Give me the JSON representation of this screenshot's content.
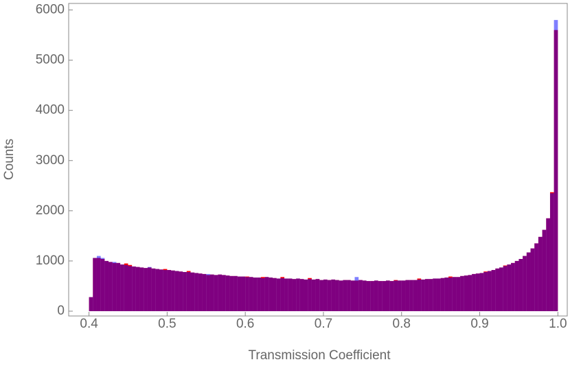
{
  "chart_data": {
    "type": "histogram",
    "x_label": "Transmission Coefficient",
    "y_label": "Counts",
    "bins": [
      0.4,
      0.405,
      0.41,
      0.415,
      0.42,
      0.425,
      0.43,
      0.435,
      0.44,
      0.445,
      0.45,
      0.455,
      0.46,
      0.465,
      0.47,
      0.475,
      0.48,
      0.485,
      0.49,
      0.495,
      0.5,
      0.505,
      0.51,
      0.515,
      0.52,
      0.525,
      0.53,
      0.535,
      0.54,
      0.545,
      0.55,
      0.555,
      0.56,
      0.565,
      0.57,
      0.575,
      0.58,
      0.585,
      0.59,
      0.595,
      0.6,
      0.605,
      0.61,
      0.615,
      0.62,
      0.625,
      0.63,
      0.635,
      0.64,
      0.645,
      0.65,
      0.655,
      0.66,
      0.665,
      0.67,
      0.675,
      0.68,
      0.685,
      0.69,
      0.695,
      0.7,
      0.705,
      0.71,
      0.715,
      0.72,
      0.725,
      0.73,
      0.735,
      0.74,
      0.745,
      0.75,
      0.755,
      0.76,
      0.765,
      0.77,
      0.775,
      0.78,
      0.785,
      0.79,
      0.795,
      0.8,
      0.805,
      0.81,
      0.815,
      0.82,
      0.825,
      0.83,
      0.835,
      0.84,
      0.845,
      0.85,
      0.855,
      0.86,
      0.865,
      0.87,
      0.875,
      0.88,
      0.885,
      0.89,
      0.895,
      0.9,
      0.905,
      0.91,
      0.915,
      0.92,
      0.925,
      0.93,
      0.935,
      0.94,
      0.945,
      0.95,
      0.955,
      0.96,
      0.965,
      0.97,
      0.975,
      0.98,
      0.985,
      0.99,
      0.995,
      1.0
    ],
    "series": [
      {
        "color": "#ff0000",
        "values": [
          280,
          1060,
          1060,
          1040,
          1000,
          980,
          960,
          960,
          930,
          950,
          920,
          890,
          880,
          870,
          860,
          870,
          850,
          840,
          830,
          840,
          820,
          810,
          800,
          790,
          780,
          800,
          770,
          760,
          750,
          740,
          720,
          730,
          720,
          730,
          720,
          710,
          700,
          700,
          690,
          690,
          690,
          680,
          670,
          670,
          680,
          680,
          670,
          660,
          650,
          680,
          650,
          650,
          640,
          650,
          640,
          630,
          660,
          630,
          640,
          620,
          630,
          620,
          630,
          620,
          610,
          620,
          620,
          610,
          610,
          620,
          610,
          600,
          600,
          610,
          600,
          600,
          610,
          600,
          620,
          610,
          610,
          620,
          620,
          620,
          650,
          630,
          640,
          640,
          650,
          650,
          660,
          670,
          690,
          680,
          680,
          700,
          710,
          720,
          740,
          750,
          760,
          790,
          800,
          820,
          850,
          870,
          910,
          930,
          960,
          1000,
          1040,
          1100,
          1170,
          1250,
          1350,
          1480,
          1620,
          1850,
          2370,
          5600
        ]
      },
      {
        "color": "#0000ff",
        "values": [
          280,
          1060,
          1100,
          1060,
          1000,
          980,
          980,
          960,
          930,
          920,
          900,
          890,
          880,
          870,
          860,
          880,
          850,
          840,
          830,
          820,
          820,
          810,
          800,
          790,
          780,
          780,
          770,
          760,
          750,
          740,
          740,
          730,
          720,
          730,
          720,
          710,
          700,
          700,
          690,
          690,
          680,
          680,
          670,
          670,
          660,
          680,
          670,
          660,
          650,
          660,
          650,
          650,
          640,
          650,
          640,
          630,
          640,
          630,
          640,
          620,
          630,
          620,
          630,
          620,
          610,
          620,
          620,
          610,
          680,
          620,
          610,
          600,
          600,
          610,
          600,
          600,
          610,
          600,
          610,
          610,
          610,
          620,
          620,
          620,
          630,
          630,
          640,
          640,
          650,
          650,
          660,
          670,
          670,
          680,
          680,
          700,
          710,
          720,
          740,
          750,
          760,
          780,
          800,
          820,
          850,
          870,
          900,
          930,
          960,
          1000,
          1040,
          1100,
          1170,
          1250,
          1350,
          1480,
          1620,
          1850,
          2350,
          5800
        ]
      }
    ],
    "xlim": [
      0.374,
      1.012
    ],
    "ylim": [
      -96,
      6130
    ],
    "xticks": [
      0.4,
      0.5,
      0.6,
      0.7,
      0.8,
      0.9,
      {
        "value": 1,
        "label": "1.0"
      }
    ],
    "yticks": [
      0,
      1000,
      2000,
      3000,
      4000,
      5000,
      6000
    ]
  }
}
